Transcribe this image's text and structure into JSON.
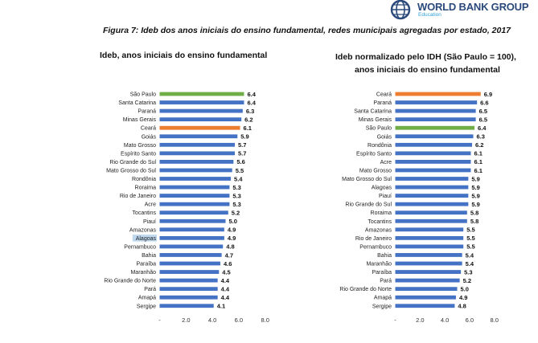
{
  "header": {
    "logo_text": "WORLD BANK GROUP",
    "logo_sub": "Education",
    "figure_title": "Figura 7: Ideb dos anos iniciais do ensino fundamental, redes municipais agregadas por estado, 2017"
  },
  "colors": {
    "bar": "#4472c4",
    "highlight_orange": "#ed7d31",
    "highlight_green": "#70ad47"
  },
  "chart_data": [
    {
      "type": "bar",
      "orientation": "horizontal",
      "title": "Ideb, anos iniciais do ensino fundamental",
      "categories": [
        "São Paulo",
        "Santa Catarina",
        "Paraná",
        "Minas Gerais",
        "Ceará",
        "Goiás",
        "Mato Grosso",
        "Espírito Santo",
        "Rio Grande do Sul",
        "Mato Grosso do Sul",
        "Rondônia",
        "Roraima",
        "Rio de Janeiro",
        "Acre",
        "Tocantins",
        "Piauí",
        "Amazonas",
        "Alagoas",
        "Pernambuco",
        "Bahia",
        "Paraíba",
        "Maranhão",
        "Rio Grande do Norte",
        "Pará",
        "Amapá",
        "Sergipe"
      ],
      "values": [
        6.4,
        6.4,
        6.3,
        6.2,
        6.1,
        5.9,
        5.7,
        5.7,
        5.6,
        5.5,
        5.4,
        5.3,
        5.3,
        5.3,
        5.2,
        5.0,
        4.9,
        4.9,
        4.8,
        4.7,
        4.6,
        4.5,
        4.4,
        4.4,
        4.4,
        4.1
      ],
      "highlights": {
        "São Paulo": "green",
        "Ceará": "orange"
      },
      "selected_label": "Alagoas",
      "xlim": [
        0,
        8
      ],
      "xticks": [
        "-",
        "2.0",
        "4.0",
        "6.0",
        "8.0"
      ]
    },
    {
      "type": "bar",
      "orientation": "horizontal",
      "title_line1": "Ideb normalizado pelo IDH (São Paulo = 100),",
      "title_line2": "anos iniciais do ensino fundamental",
      "categories": [
        "Ceará",
        "Paraná",
        "Santa Catarina",
        "Minas Gerais",
        "São Paulo",
        "Goiás",
        "Rondônia",
        "Espírito Santo",
        "Acre",
        "Mato Grosso",
        "Mato Grosso do Sul",
        "Alagoas",
        "Piauí",
        "Rio Grande do Sul",
        "Roraima",
        "Tocantins",
        "Amazonas",
        "Rio de Janeiro",
        "Pernambuco",
        "Bahia",
        "Maranhão",
        "Paraíba",
        "Pará",
        "Rio Grande do Norte",
        "Amapá",
        "Sergipe"
      ],
      "values": [
        6.9,
        6.6,
        6.5,
        6.5,
        6.4,
        6.3,
        6.2,
        6.1,
        6.1,
        6.1,
        5.9,
        5.9,
        5.9,
        5.9,
        5.8,
        5.8,
        5.5,
        5.5,
        5.5,
        5.4,
        5.4,
        5.3,
        5.2,
        5.0,
        4.9,
        4.8
      ],
      "highlights": {
        "Ceará": "orange",
        "São Paulo": "green"
      },
      "xlim": [
        0,
        8
      ],
      "xticks": [
        "-",
        "2.0",
        "4.0",
        "6.0",
        "8.0"
      ]
    }
  ]
}
